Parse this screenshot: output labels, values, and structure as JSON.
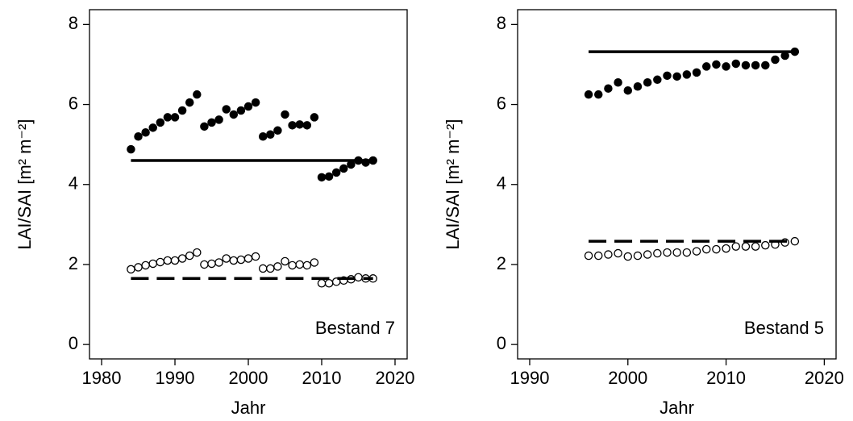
{
  "chart_data": [
    {
      "type": "scatter",
      "ylabel": "LAI/SAI [m² m⁻²]",
      "xlabel": "Jahr",
      "annotation": "Bestand 7",
      "xlim": [
        1978.35,
        2021.65
      ],
      "ylim": [
        -0.36,
        8.37
      ],
      "xticks": [
        1980,
        1990,
        2000,
        2010,
        2020
      ],
      "yticks": [
        0,
        2,
        4,
        6,
        8
      ],
      "series": [
        {
          "marker": "filled",
          "color": "#000000",
          "x": [
            1984,
            1985,
            1986,
            1987,
            1988,
            1989,
            1990,
            1991,
            1992,
            1993,
            1994,
            1995,
            1996,
            1997,
            1998,
            1999,
            2000,
            2001,
            2002,
            2003,
            2004,
            2005,
            2006,
            2007,
            2008,
            2009,
            2010,
            2011,
            2012,
            2013,
            2014,
            2015,
            2016,
            2017
          ],
          "values": [
            4.88,
            5.2,
            5.3,
            5.42,
            5.55,
            5.68,
            5.68,
            5.85,
            6.05,
            6.25,
            5.45,
            5.55,
            5.62,
            5.88,
            5.75,
            5.85,
            5.95,
            6.05,
            5.2,
            5.25,
            5.35,
            5.75,
            5.48,
            5.5,
            5.48,
            5.68,
            4.18,
            4.2,
            4.3,
            4.4,
            4.5,
            4.6,
            4.55,
            4.6
          ]
        },
        {
          "marker": "open",
          "color": "#000000",
          "x": [
            1984,
            1985,
            1986,
            1987,
            1988,
            1989,
            1990,
            1991,
            1992,
            1993,
            1994,
            1995,
            1996,
            1997,
            1998,
            1999,
            2000,
            2001,
            2002,
            2003,
            2004,
            2005,
            2006,
            2007,
            2008,
            2009,
            2010,
            2011,
            2012,
            2013,
            2014,
            2015,
            2016,
            2017
          ],
          "values": [
            1.88,
            1.93,
            1.98,
            2.02,
            2.06,
            2.1,
            2.1,
            2.15,
            2.22,
            2.3,
            2.0,
            2.02,
            2.05,
            2.15,
            2.1,
            2.12,
            2.15,
            2.2,
            1.9,
            1.9,
            1.95,
            2.08,
            1.98,
            2.0,
            1.98,
            2.05,
            1.53,
            1.53,
            1.57,
            1.6,
            1.63,
            1.68,
            1.65,
            1.65
          ]
        },
        {
          "line": "solid",
          "color": "#000000",
          "x": [
            1984,
            2017
          ],
          "values": [
            4.6,
            4.6
          ]
        },
        {
          "line": "dashed",
          "color": "#000000",
          "x": [
            1984,
            2017
          ],
          "values": [
            1.65,
            1.65
          ]
        }
      ]
    },
    {
      "type": "scatter",
      "ylabel": "LAI/SAI [m² m⁻²]",
      "xlabel": "Jahr",
      "annotation": "Bestand 5",
      "xlim": [
        1988.77,
        2021.2
      ],
      "ylim": [
        -0.36,
        8.37
      ],
      "xticks": [
        1990,
        2000,
        2010,
        2020
      ],
      "yticks": [
        0,
        2,
        4,
        6,
        8
      ],
      "series": [
        {
          "marker": "filled",
          "color": "#000000",
          "x": [
            1996,
            1997,
            1998,
            1999,
            2000,
            2001,
            2002,
            2003,
            2004,
            2005,
            2006,
            2007,
            2008,
            2009,
            2010,
            2011,
            2012,
            2013,
            2014,
            2015,
            2016,
            2017
          ],
          "values": [
            6.25,
            6.25,
            6.4,
            6.55,
            6.35,
            6.45,
            6.55,
            6.62,
            6.72,
            6.7,
            6.75,
            6.8,
            6.95,
            7.0,
            6.95,
            7.02,
            6.98,
            6.98,
            6.98,
            7.12,
            7.22,
            7.32
          ]
        },
        {
          "marker": "open",
          "color": "#000000",
          "x": [
            1996,
            1997,
            1998,
            1999,
            2000,
            2001,
            2002,
            2003,
            2004,
            2005,
            2006,
            2007,
            2008,
            2009,
            2010,
            2011,
            2012,
            2013,
            2014,
            2015,
            2016,
            2017
          ],
          "values": [
            2.22,
            2.22,
            2.25,
            2.28,
            2.2,
            2.22,
            2.25,
            2.28,
            2.3,
            2.3,
            2.3,
            2.33,
            2.38,
            2.38,
            2.4,
            2.45,
            2.45,
            2.45,
            2.48,
            2.5,
            2.55,
            2.58
          ]
        },
        {
          "line": "solid",
          "color": "#000000",
          "x": [
            1996,
            2017
          ],
          "values": [
            7.32,
            7.32
          ]
        },
        {
          "line": "dashed",
          "color": "#000000",
          "x": [
            1996,
            2017
          ],
          "values": [
            2.58,
            2.58
          ]
        }
      ]
    }
  ]
}
